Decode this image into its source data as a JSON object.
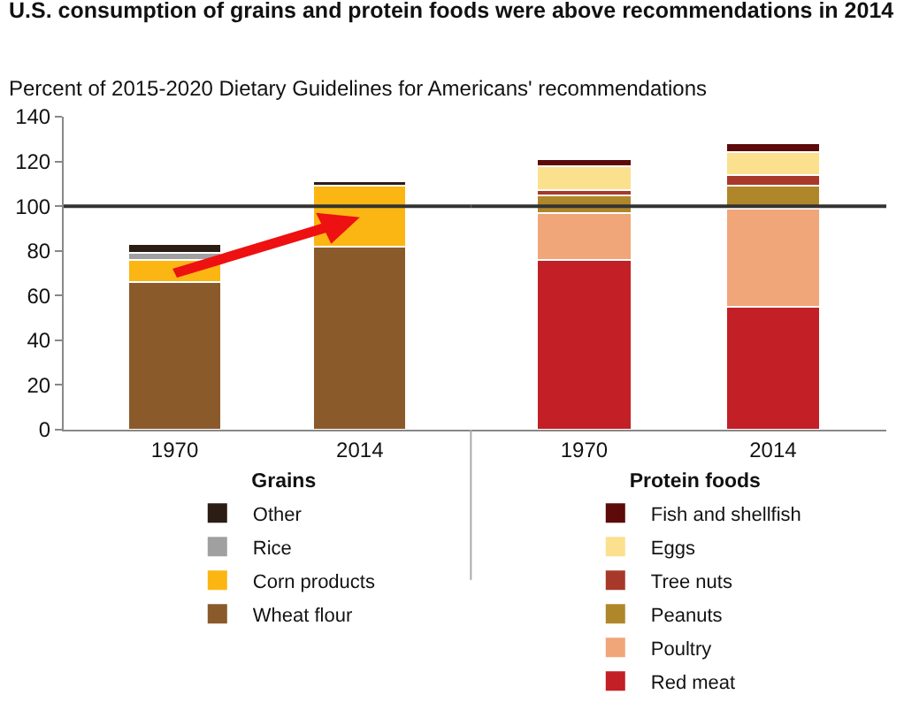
{
  "chart_data": [
    {
      "type": "bar",
      "stacked": true,
      "title": "U.S. consumption of grains and protein foods were above recommendations in 2014",
      "subtitle": "Percent of 2015-2020 Dietary Guidelines for Americans' recommendations",
      "legend_title": "Grains",
      "legend": "bottom",
      "categories": [
        "1970",
        "2014"
      ],
      "ylim": [
        0,
        140
      ],
      "yticks": [
        0,
        20,
        40,
        60,
        80,
        100,
        120,
        140
      ],
      "ref_lines": [
        {
          "axis": "y",
          "value": 100,
          "color": "#333333"
        }
      ],
      "series": [
        {
          "name": "Wheat flour",
          "color": "#8b5a2b",
          "values": [
            66,
            82
          ]
        },
        {
          "name": "Corn products",
          "color": "#fbb613",
          "values": [
            10,
            27
          ]
        },
        {
          "name": "Rice",
          "color": "#a0a0a0",
          "values": [
            3,
            null
          ]
        },
        {
          "name": "Other",
          "color": "#2b1d14",
          "values": [
            4,
            2
          ]
        }
      ]
    },
    {
      "type": "bar",
      "stacked": true,
      "legend_title": "Protein foods",
      "legend": "bottom",
      "categories": [
        "1970",
        "2014"
      ],
      "ylim": [
        0,
        140
      ],
      "tick_labels": "x",
      "ref_lines": [
        {
          "axis": "y",
          "value": 100,
          "color": "#333333"
        }
      ],
      "series": [
        {
          "name": "Red meat",
          "color": "#c21f26",
          "values": [
            76,
            55
          ]
        },
        {
          "name": "Poultry",
          "color": "#f0a678",
          "values": [
            21,
            44
          ]
        },
        {
          "name": "Peanuts",
          "color": "#b0862a",
          "values": [
            8,
            10
          ]
        },
        {
          "name": "Tree nuts",
          "color": "#a8392a",
          "values": [
            2,
            5
          ]
        },
        {
          "name": "Eggs",
          "color": "#fbe08e",
          "values": [
            11,
            10
          ]
        },
        {
          "name": "Fish and shellfish",
          "color": "#5c0a0a",
          "values": [
            3,
            4
          ]
        }
      ]
    }
  ]
}
